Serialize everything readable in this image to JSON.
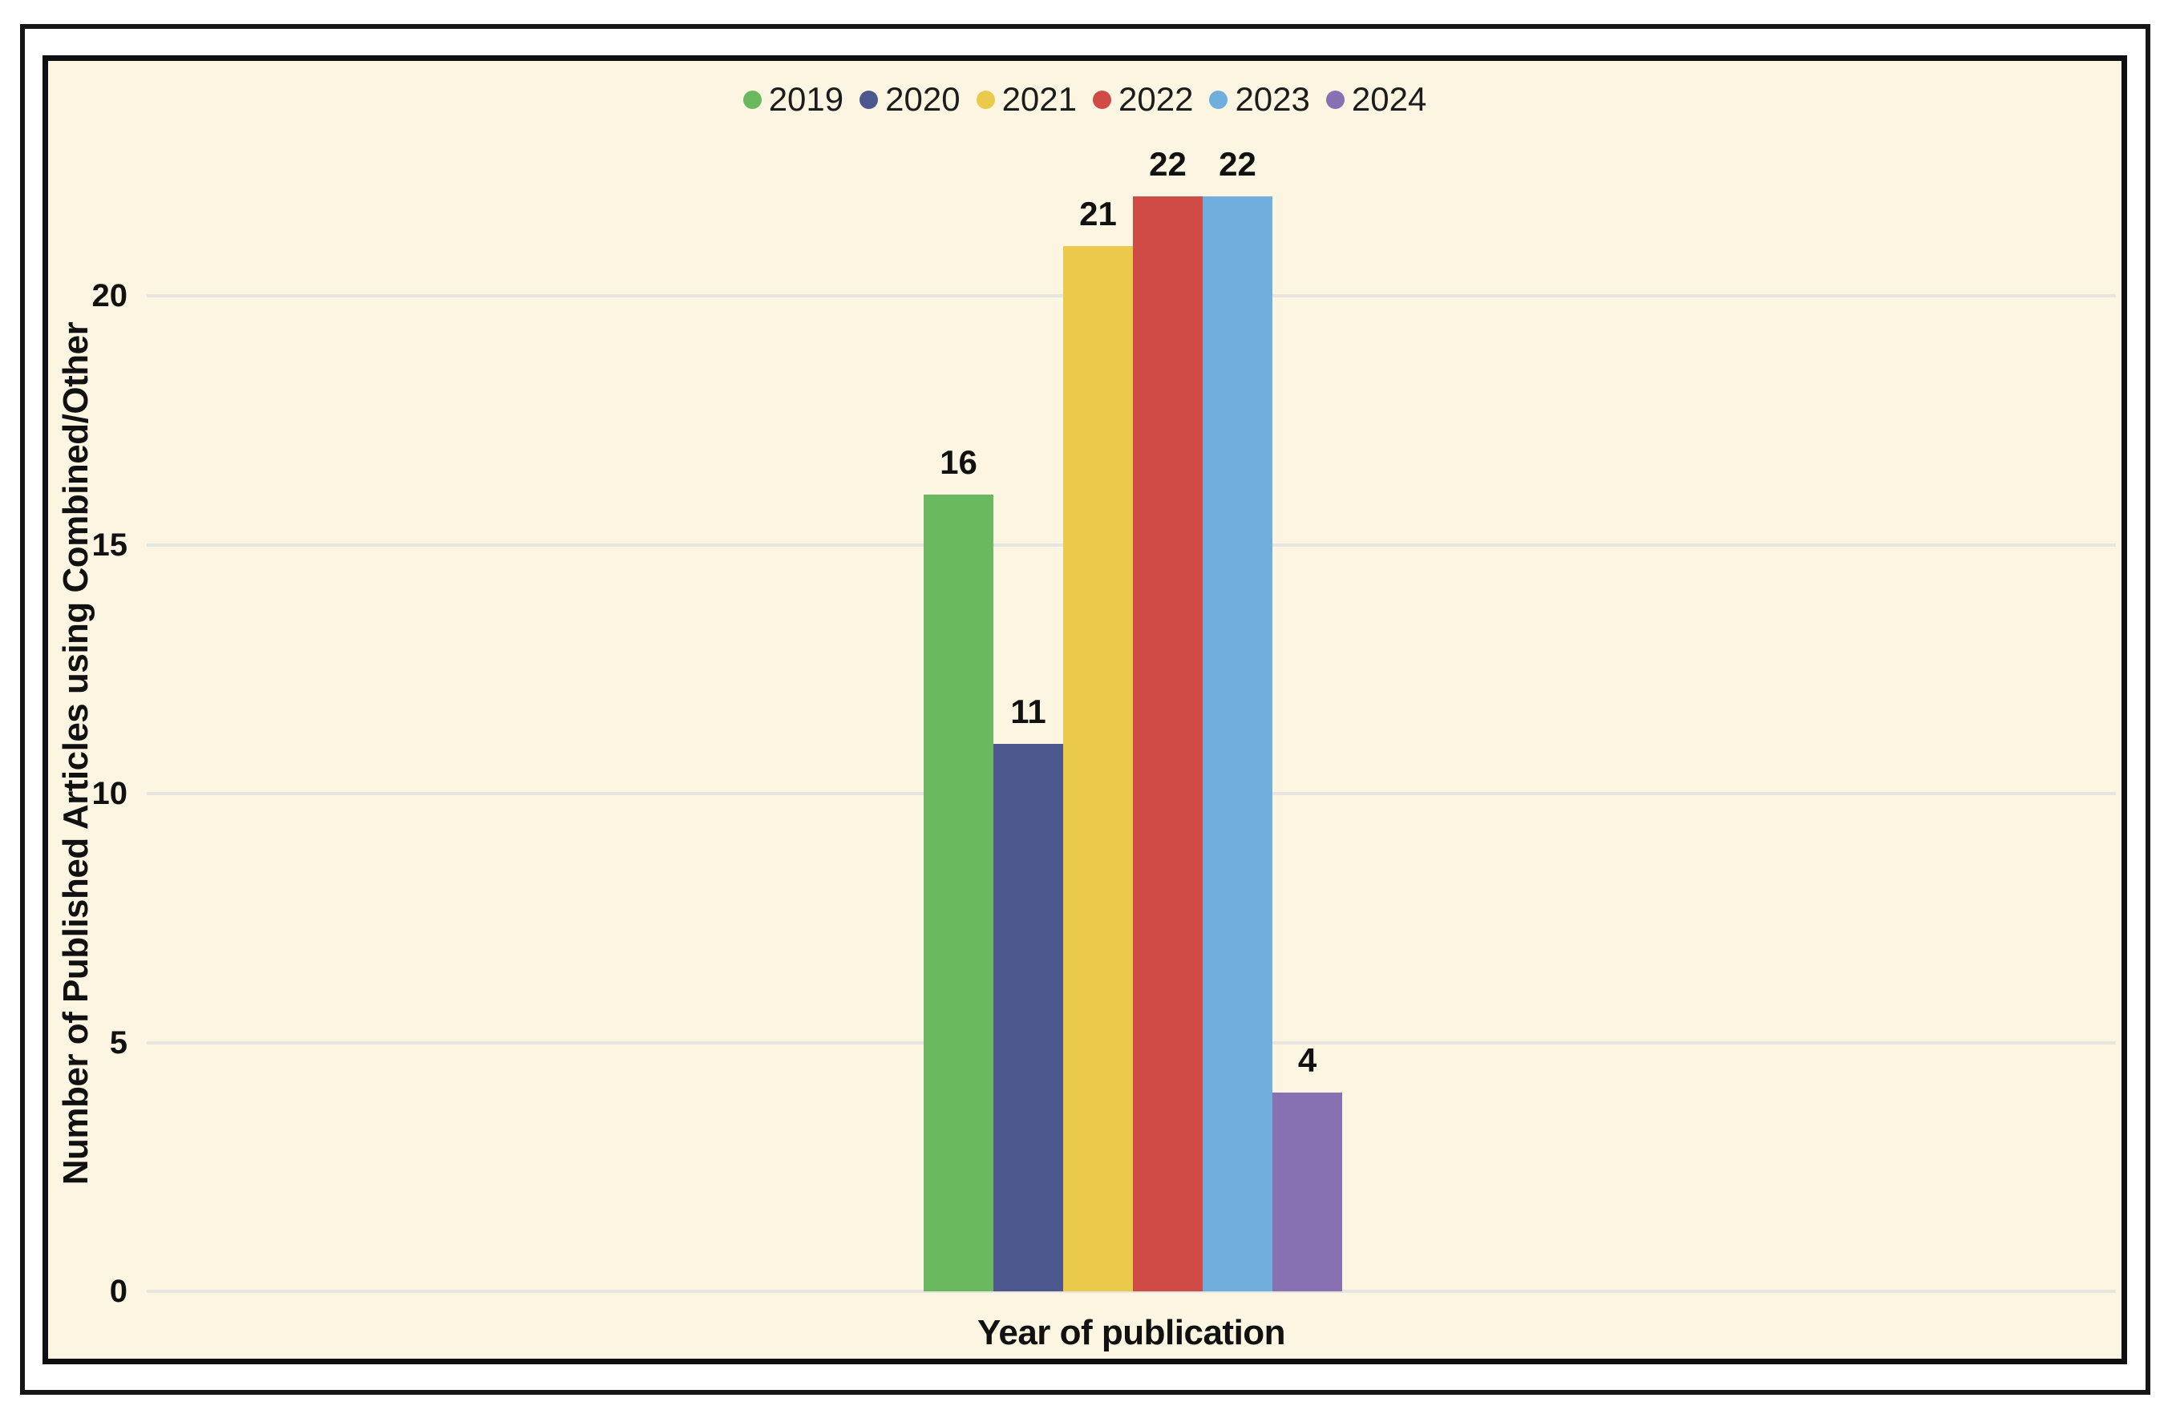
{
  "chart_data": {
    "type": "bar",
    "title": "",
    "xlabel": "Year of publication",
    "ylabel": "Number of Published Articles using Combined/Other",
    "categories": [
      "2019",
      "2020",
      "2021",
      "2022",
      "2023",
      "2024"
    ],
    "values": [
      16,
      11,
      21,
      22,
      22,
      4
    ],
    "data_labels": [
      16,
      11,
      21,
      22,
      22,
      4
    ],
    "bar_colors": [
      "#6BB95E",
      "#4C578D",
      "#EAC94B",
      "#D04B45",
      "#70AEDE",
      "#8771B3"
    ],
    "yticks": [
      0,
      5,
      10,
      15,
      20
    ],
    "ylim": [
      0,
      22
    ],
    "grid": "horizontal",
    "legend_position": "top",
    "legend_marker": "circle"
  },
  "colors": {
    "page_bg": "#FFFFFF",
    "chart_bg": "#FCF5E2",
    "frame_border": "#151515",
    "gridline": "#E7E5E0",
    "label_text": "#111111"
  }
}
